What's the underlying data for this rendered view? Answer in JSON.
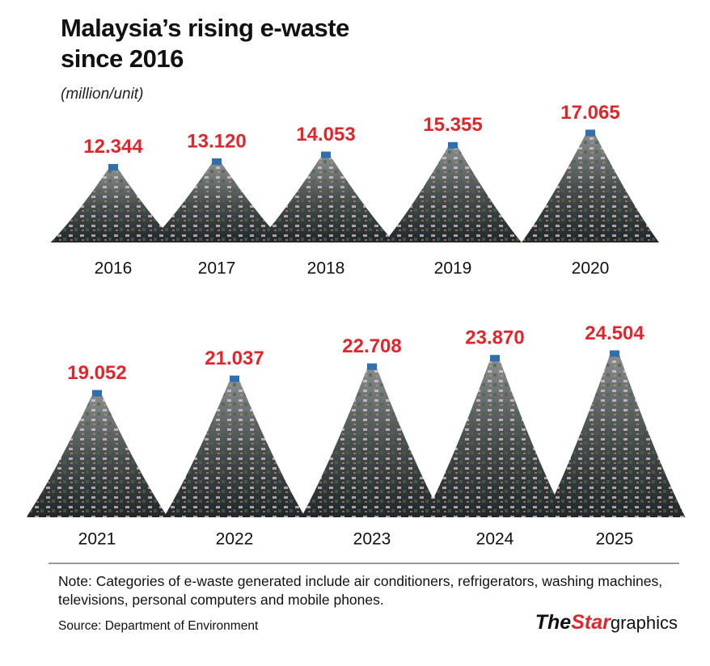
{
  "chart_data": {
    "type": "pictorial",
    "title": "Malaysia’s rising e-waste since 2016",
    "subtitle": "(million/unit)",
    "categories": [
      "2016",
      "2017",
      "2018",
      "2019",
      "2020",
      "2021",
      "2022",
      "2023",
      "2024",
      "2025"
    ],
    "values": [
      12.344,
      13.12,
      14.053,
      15.355,
      17.065,
      19.052,
      21.037,
      22.708,
      23.87,
      24.504
    ],
    "value_labels": [
      "12.344",
      "13.120",
      "14.053",
      "15.355",
      "17.065",
      "19.052",
      "21.037",
      "22.708",
      "23.870",
      "24.504"
    ],
    "label_color": "#e0262b",
    "note": "Note: Categories of e-waste generated include air conditioners, refrigerators, washing machines, televisions, personal computers and mobile phones.",
    "source": "Source: Department of Environment",
    "brand_the": "The",
    "brand_star": "Star",
    "brand_graphics": "graphics"
  }
}
